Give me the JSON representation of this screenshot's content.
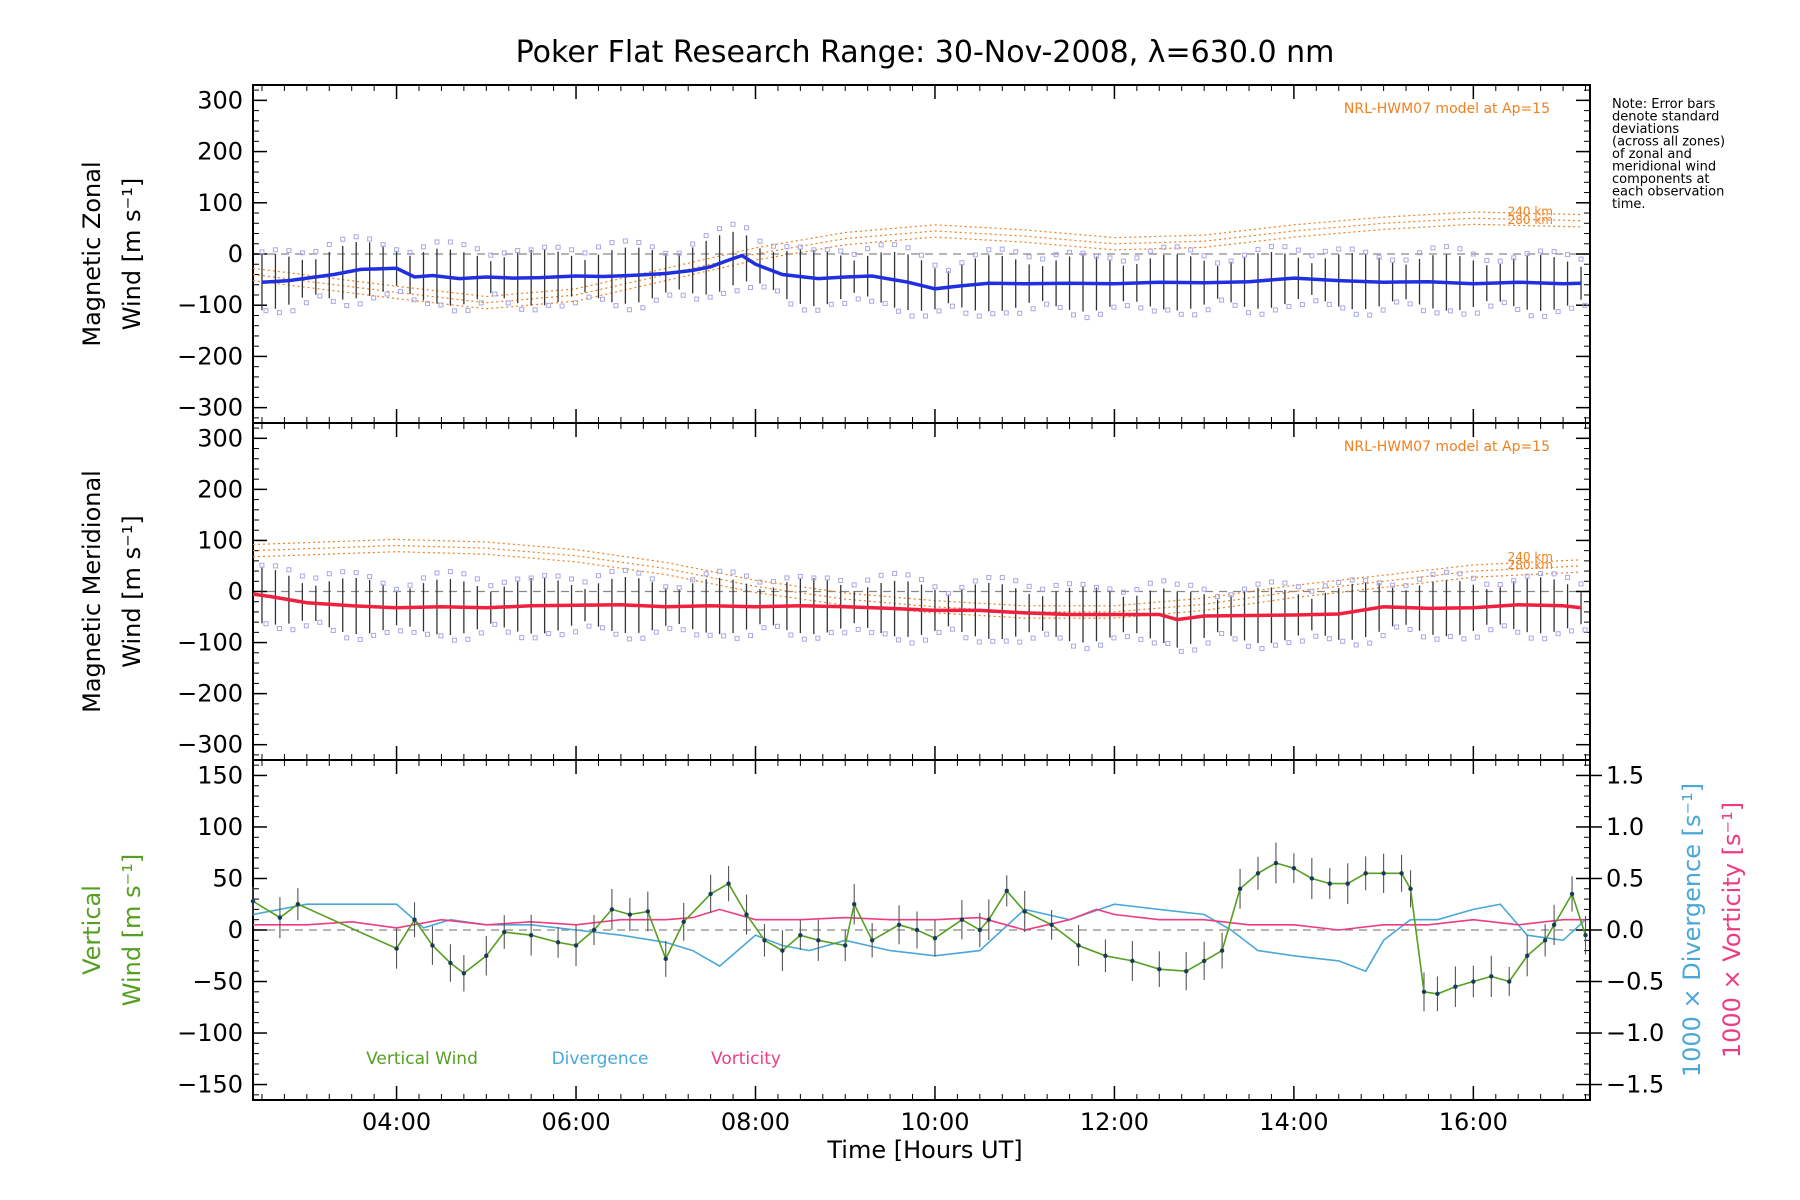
{
  "chart_data": {
    "type": "line",
    "title": "Poker Flat Research Range: 30-Nov-2008, λ=630.0 nm",
    "xlabel": "Time [Hours UT]",
    "xlim": [
      2.4,
      17.3
    ],
    "xticks": [
      {
        "v": 4,
        "label": "04:00"
      },
      {
        "v": 6,
        "label": "06:00"
      },
      {
        "v": 8,
        "label": "08:00"
      },
      {
        "v": 10,
        "label": "10:00"
      },
      {
        "v": 12,
        "label": "12:00"
      },
      {
        "v": 14,
        "label": "14:00"
      },
      {
        "v": 16,
        "label": "16:00"
      }
    ],
    "note": [
      "Note: Error bars",
      "denote standard",
      "deviations",
      "(across all zones)",
      "of zonal and",
      "meridional wind",
      "components at",
      "each observation",
      "time."
    ],
    "colors": {
      "zonal": "#2030e0",
      "meridional": "#f02040",
      "vertical": "#55a020",
      "divergence": "#4aa8d8",
      "vorticity": "#ee3c82",
      "model": "#f08020",
      "scatter": "#a8a8e8"
    },
    "panels": [
      {
        "ylabel_lines": [
          "Magnetic Zonal",
          "Wind [m s⁻¹]"
        ],
        "ylim": [
          -330,
          330
        ],
        "yticks": [
          300,
          200,
          100,
          0,
          -100,
          -200,
          -300
        ],
        "model_label": "NRL-HWM07 model at Ap=15",
        "model_annotations": [
          "240 km",
          "280 km"
        ],
        "series": [
          {
            "x": [
              2.5,
              2.8,
              3.3,
              3.6,
              4.0,
              4.2,
              4.4,
              4.7,
              5.0,
              5.3,
              5.6,
              6.0,
              6.3,
              6.6,
              7.0,
              7.3,
              7.5,
              7.7,
              7.85,
              8.0,
              8.3,
              8.7,
              9.0,
              9.3,
              9.7,
              10.0,
              10.3,
              10.6,
              11.0,
              11.5,
              12.0,
              12.5,
              13.0,
              13.5,
              14.0,
              14.5,
              15.0,
              15.5,
              16.0,
              16.5,
              17.0,
              17.2
            ],
            "y": [
              -55,
              -52,
              -40,
              -30,
              -28,
              -45,
              -42,
              -48,
              -45,
              -47,
              -46,
              -43,
              -44,
              -42,
              -38,
              -32,
              -25,
              -12,
              -3,
              -20,
              -40,
              -48,
              -45,
              -43,
              -55,
              -68,
              -62,
              -57,
              -58,
              -57,
              -58,
              -55,
              -56,
              -54,
              -47,
              -52,
              -55,
              -54,
              -58,
              -55,
              -58,
              -57
            ]
          }
        ]
      },
      {
        "ylabel_lines": [
          "Magnetic Meridional",
          "Wind [m s⁻¹]"
        ],
        "ylim": [
          -330,
          330
        ],
        "yticks": [
          300,
          200,
          100,
          0,
          -100,
          -200,
          -300
        ],
        "model_label": "NRL-HWM07 model at Ap=15",
        "model_annotations": [
          "240 km",
          "280 km"
        ],
        "series": [
          {
            "x": [
              2.4,
              2.6,
              3.0,
              3.5,
              4.0,
              4.5,
              5.0,
              5.5,
              6.0,
              6.5,
              7.0,
              7.5,
              8.0,
              8.5,
              9.0,
              9.5,
              10.0,
              10.5,
              11.0,
              11.5,
              12.0,
              12.5,
              12.7,
              13.0,
              13.5,
              14.0,
              14.5,
              15.0,
              15.5,
              16.0,
              16.5,
              17.0,
              17.2
            ],
            "y": [
              -5,
              -10,
              -22,
              -28,
              -32,
              -30,
              -32,
              -28,
              -27,
              -26,
              -30,
              -28,
              -30,
              -28,
              -30,
              -33,
              -37,
              -37,
              -42,
              -45,
              -45,
              -45,
              -55,
              -48,
              -47,
              -46,
              -44,
              -30,
              -33,
              -32,
              -26,
              -28,
              -32
            ]
          }
        ]
      },
      {
        "ylabel_lines": [
          "Vertical",
          "Wind [m s⁻¹]"
        ],
        "ylim": [
          -165,
          165
        ],
        "yticks": [
          150,
          100,
          50,
          0,
          -50,
          -100,
          -150
        ],
        "right_axis": {
          "ylim": [
            -1.65,
            1.65
          ],
          "ticks": [
            1.5,
            1.0,
            0.5,
            0.0,
            -0.5,
            -1.0,
            -1.5
          ],
          "tick_labels": [
            "1.5",
            "1.0",
            "0.5",
            "0.0",
            "−0.5",
            "−1.0",
            "−1.5"
          ],
          "label_div": "1000 × Divergence [s⁻¹]",
          "label_vor": "1000 × Vorticity [s⁻¹]"
        },
        "series": [
          {
            "name": "Vertical Wind",
            "axis": "left",
            "x": [
              2.4,
              2.7,
              2.9,
              4.0,
              4.2,
              4.4,
              4.6,
              4.75,
              5.0,
              5.2,
              5.5,
              5.8,
              6.0,
              6.2,
              6.4,
              6.6,
              6.8,
              7.0,
              7.2,
              7.5,
              7.7,
              7.9,
              8.1,
              8.3,
              8.5,
              8.7,
              9.0,
              9.1,
              9.3,
              9.6,
              9.8,
              10.0,
              10.3,
              10.5,
              10.6,
              10.8,
              11.0,
              11.3,
              11.6,
              11.9,
              12.2,
              12.5,
              12.8,
              13.0,
              13.2,
              13.4,
              13.6,
              13.8,
              14.0,
              14.2,
              14.4,
              14.6,
              14.8,
              15.0,
              15.2,
              15.3,
              15.45,
              15.6,
              15.8,
              16.0,
              16.2,
              16.4,
              16.6,
              16.8,
              16.9,
              17.1,
              17.25
            ],
            "y": [
              28,
              12,
              25,
              -18,
              10,
              -15,
              -32,
              -42,
              -25,
              -2,
              -5,
              -12,
              -15,
              0,
              20,
              15,
              18,
              -28,
              8,
              35,
              45,
              15,
              -10,
              -20,
              -5,
              -10,
              -15,
              25,
              -10,
              5,
              0,
              -8,
              10,
              0,
              10,
              38,
              18,
              5,
              -15,
              -25,
              -30,
              -38,
              -40,
              -30,
              -20,
              40,
              55,
              65,
              60,
              50,
              45,
              45,
              55,
              55,
              55,
              40,
              -60,
              -62,
              -55,
              -50,
              -45,
              -50,
              -25,
              -10,
              5,
              35,
              -5
            ]
          },
          {
            "name": "Divergence",
            "axis": "right",
            "x": [
              2.4,
              3.0,
              3.5,
              4.0,
              4.3,
              4.6,
              5.0,
              5.5,
              6.0,
              6.5,
              7.0,
              7.3,
              7.6,
              7.8,
              8.0,
              8.3,
              8.6,
              9.0,
              9.5,
              10.0,
              10.5,
              11.0,
              11.5,
              12.0,
              12.5,
              13.0,
              13.3,
              13.6,
              14.0,
              14.5,
              14.8,
              15.0,
              15.3,
              15.6,
              16.0,
              16.3,
              16.6,
              17.0,
              17.25
            ],
            "y": [
              0.15,
              0.25,
              0.25,
              0.25,
              0.02,
              0.1,
              0.05,
              0.05,
              0.0,
              -0.05,
              -0.12,
              -0.2,
              -0.35,
              -0.2,
              -0.05,
              -0.15,
              -0.2,
              -0.1,
              -0.2,
              -0.25,
              -0.2,
              0.2,
              0.1,
              0.25,
              0.2,
              0.15,
              0.0,
              -0.2,
              -0.25,
              -0.3,
              -0.4,
              -0.1,
              0.1,
              0.1,
              0.2,
              0.25,
              -0.05,
              -0.1,
              0.1
            ]
          },
          {
            "name": "Vorticity",
            "axis": "right",
            "x": [
              2.4,
              3.0,
              3.5,
              4.0,
              4.5,
              5.0,
              5.5,
              6.0,
              6.5,
              7.0,
              7.3,
              7.6,
              8.0,
              8.5,
              9.0,
              9.5,
              10.0,
              10.5,
              11.0,
              11.5,
              11.8,
              12.0,
              12.5,
              13.0,
              13.5,
              14.0,
              14.5,
              15.0,
              15.5,
              16.0,
              16.5,
              17.0,
              17.25
            ],
            "y": [
              0.05,
              0.05,
              0.08,
              0.02,
              0.1,
              0.05,
              0.08,
              0.05,
              0.1,
              0.1,
              0.12,
              0.2,
              0.1,
              0.1,
              0.12,
              0.1,
              0.1,
              0.12,
              0.0,
              0.1,
              0.2,
              0.15,
              0.1,
              0.1,
              0.05,
              0.05,
              0.0,
              0.05,
              0.05,
              0.1,
              0.05,
              0.1,
              0.1
            ]
          }
        ]
      }
    ]
  }
}
